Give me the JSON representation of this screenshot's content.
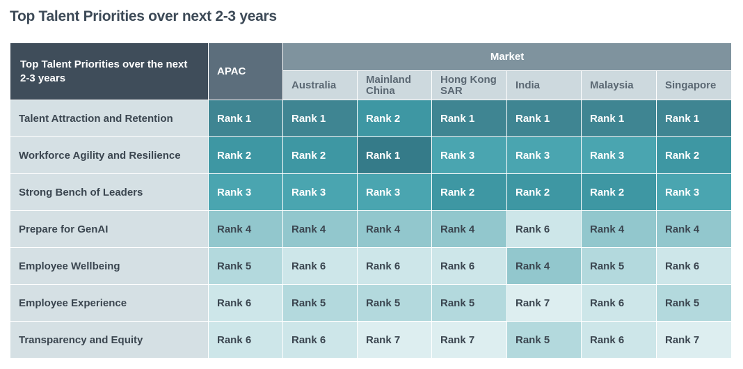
{
  "page_title": "Top Talent Priorities over next 2-3 years",
  "colors": {
    "rank_1": "#3f8592",
    "rank_2": "#3e97a3",
    "rank_3": "#4aa5b0",
    "rank_4": "#92c7cd",
    "rank_5": "#b3d9dd",
    "rank_6": "#cde6e9",
    "rank_7": "#ddeef0",
    "header_dark": "#3f4d5a",
    "header_apac": "#5c6e7c",
    "header_market": "#7f939e"
  },
  "chart_data": {
    "type": "table",
    "title": "Top Talent Priorities over next 2-3 years",
    "corner_label": "Top Talent Priorities over the next 2-3 years",
    "apac_label": "APAC",
    "group_label": "Market",
    "markets": [
      "Australia",
      "Mainland China",
      "Hong Kong SAR",
      "India",
      "Malaysia",
      "Singapore"
    ],
    "rows": [
      {
        "priority": "Talent Attraction and Retention",
        "apac": "Rank 1",
        "values": [
          "Rank 1",
          "Rank 2",
          "Rank 1",
          "Rank 1",
          "Rank 1",
          "Rank 1"
        ]
      },
      {
        "priority": "Workforce Agility and Resilience",
        "apac": "Rank 2",
        "values": [
          "Rank 2",
          "Rank 1",
          "Rank 3",
          "Rank 3",
          "Rank 3",
          "Rank 2"
        ]
      },
      {
        "priority": "Strong Bench of Leaders",
        "apac": "Rank 3",
        "values": [
          "Rank 3",
          "Rank 3",
          "Rank 2",
          "Rank 2",
          "Rank 2",
          "Rank 3"
        ]
      },
      {
        "priority": "Prepare for GenAI",
        "apac": "Rank 4",
        "values": [
          "Rank 4",
          "Rank 4",
          "Rank 4",
          "Rank 6",
          "Rank 4",
          "Rank 4"
        ]
      },
      {
        "priority": "Employee Wellbeing",
        "apac": "Rank 5",
        "values": [
          "Rank 6",
          "Rank 6",
          "Rank 6",
          "Rank 4",
          "Rank 5",
          "Rank 6"
        ]
      },
      {
        "priority": "Employee Experience",
        "apac": "Rank 6",
        "values": [
          "Rank 5",
          "Rank 5",
          "Rank 5",
          "Rank 7",
          "Rank 6",
          "Rank 5"
        ]
      },
      {
        "priority": "Transparency and Equity",
        "apac": "Rank 6",
        "values": [
          "Rank 6",
          "Rank 7",
          "Rank 7",
          "Rank 5",
          "Rank 6",
          "Rank 7"
        ]
      }
    ]
  }
}
